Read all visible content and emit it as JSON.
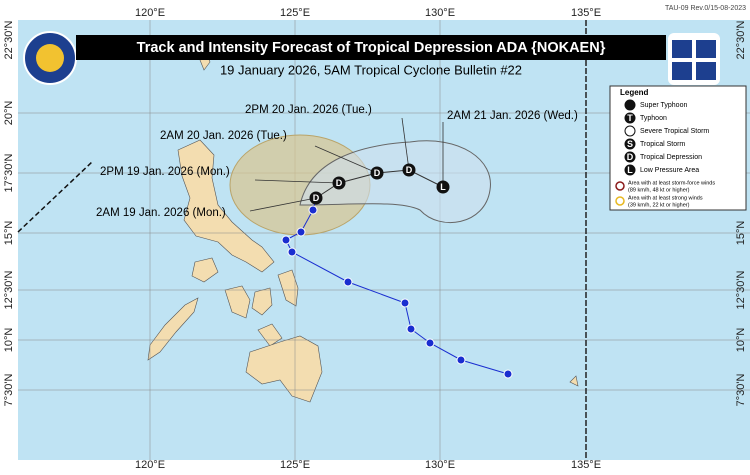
{
  "header": {
    "form_code": "TAU-09 Rev.0/15-08-2023",
    "title": "Track and Intensity Forecast of Tropical Depression ADA {NOKAEN}",
    "subtitle": "19 January 2026, 5AM Tropical Cyclone Bulletin #22"
  },
  "map": {
    "longitudes": [
      "120°E",
      "125°E",
      "130°E",
      "135°E"
    ],
    "latitudes": [
      "22°30'N",
      "20°N",
      "17°30'N",
      "15°N",
      "12°30'N",
      "10°N",
      "7°30'N"
    ],
    "forecast_points": [
      {
        "label": "2AM 19 Jan. 2026 (Mon.)",
        "symbol": "D"
      },
      {
        "label": "2PM 19 Jan. 2026 (Mon.)",
        "symbol": "D"
      },
      {
        "label": "2AM 20 Jan. 2026 (Tue.)",
        "symbol": "D"
      },
      {
        "label": "2PM 20 Jan. 2026 (Tue.)",
        "symbol": "D"
      },
      {
        "label": "2AM 21 Jan. 2026 (Wed.)",
        "symbol": "L"
      }
    ]
  },
  "legend": {
    "title": "Legend",
    "items": [
      {
        "symbol": "",
        "label": "Super Typhoon"
      },
      {
        "symbol": "T",
        "label": "Typhoon"
      },
      {
        "symbol": "",
        "label": "Severe Tropical Storm"
      },
      {
        "symbol": "S",
        "label": "Tropical Storm"
      },
      {
        "symbol": "D",
        "label": "Tropical Depression"
      },
      {
        "symbol": "L",
        "label": "Low Pressure Area"
      }
    ],
    "wind_areas": [
      {
        "line1": "Area with at least storm-force winds",
        "line2": "(89 km/h, 48 kt or higher)"
      },
      {
        "line1": "Area with at least strong winds",
        "line2": "(39 km/h, 22 kt or higher)"
      }
    ]
  }
}
